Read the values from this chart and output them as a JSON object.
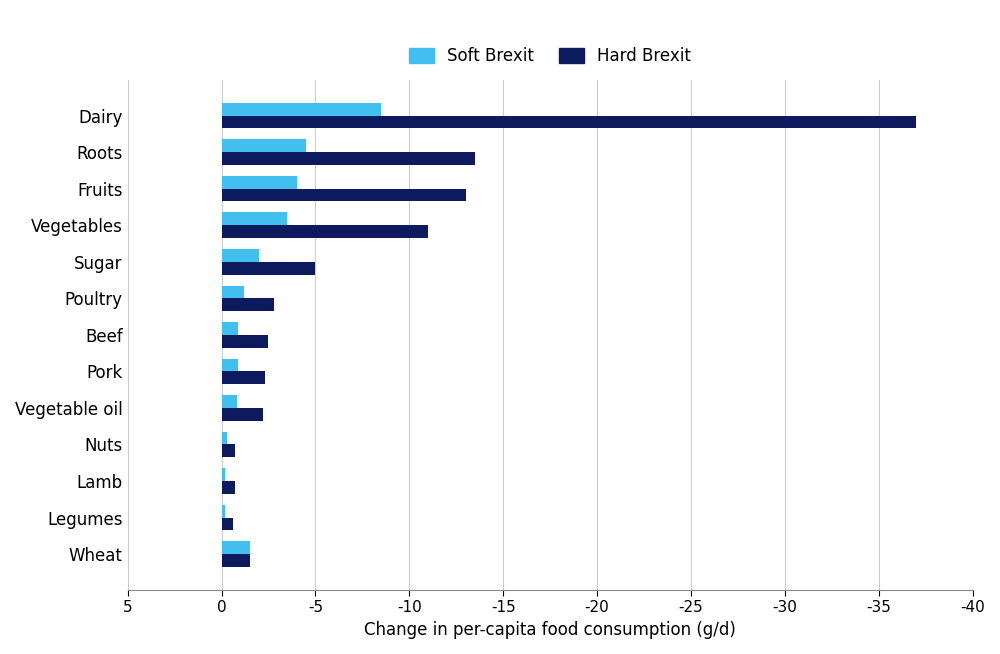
{
  "categories": [
    "Dairy",
    "Roots",
    "Fruits",
    "Vegetables",
    "Sugar",
    "Poultry",
    "Beef",
    "Pork",
    "Vegetable oil",
    "Nuts",
    "Lamb",
    "Legumes",
    "Wheat"
  ],
  "soft_brexit": [
    -8.5,
    -4.5,
    -4.0,
    -3.5,
    -2.0,
    -1.2,
    -0.9,
    -0.9,
    -0.8,
    -0.3,
    -0.2,
    -0.2,
    -1.5
  ],
  "hard_brexit": [
    -37.0,
    -13.5,
    -13.0,
    -11.0,
    -5.0,
    -2.8,
    -2.5,
    -2.3,
    -2.2,
    -0.7,
    -0.7,
    -0.6,
    -1.5
  ],
  "soft_color": "#41BFEE",
  "hard_color": "#0D1B5E",
  "xlabel": "Change in per-capita food consumption (g/d)",
  "xlim_left": 5,
  "xlim_right": -40,
  "legend_soft": "Soft Brexit",
  "legend_hard": "Hard Brexit",
  "bar_height": 0.35,
  "figsize": [
    10.0,
    6.54
  ],
  "dpi": 100,
  "grid_color": "#cccccc",
  "background_color": "#ffffff"
}
